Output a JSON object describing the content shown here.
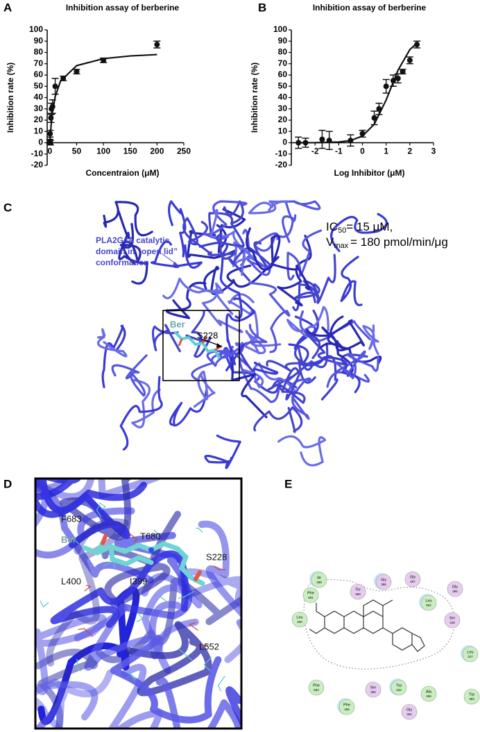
{
  "chart_data": [
    {
      "type": "scatter",
      "title": "Inhibition assay of berberine",
      "xlabel": "Concentraion (μM)",
      "ylabel": "Inhibition rate (%)",
      "x": [
        0,
        0.5,
        1,
        2,
        3,
        5,
        10,
        25,
        50,
        100,
        200
      ],
      "values": [
        1,
        8,
        0,
        22,
        30,
        32,
        50,
        57,
        63,
        73,
        87
      ],
      "errors": [
        2,
        3,
        2,
        4,
        5,
        6,
        7,
        2,
        2,
        2,
        3
      ],
      "fit": {
        "x": [
          0,
          2,
          5,
          10,
          20,
          50,
          100,
          150,
          200
        ],
        "values": [
          0,
          13.7,
          27.3,
          41,
          54.7,
          68.3,
          74.5,
          76.9,
          78.1
        ]
      },
      "color": "#111111",
      "xlim": [
        -5,
        250
      ],
      "xticks": [
        0,
        50,
        100,
        150,
        200,
        250
      ],
      "ylim": [
        -20,
        100
      ],
      "yticks": [
        -20,
        -10,
        0,
        10,
        20,
        30,
        40,
        50,
        60,
        70,
        80,
        90,
        100
      ]
    },
    {
      "type": "scatter",
      "title": "Inhibition assay of berberine",
      "xlabel": "Log Inhibitor (μM)",
      "ylabel": "Inhibition rate (%)",
      "x": [
        -2.7,
        -2.4,
        -1.7,
        -1.4,
        -0.5,
        0,
        0.5,
        0.7,
        1,
        1.3,
        1.5,
        1.7,
        2,
        2.3
      ],
      "values": [
        0,
        0,
        3,
        2,
        2,
        8,
        22,
        30,
        50,
        55,
        57,
        63,
        73,
        87
      ],
      "errors": [
        5,
        4,
        8,
        8,
        5,
        3,
        6,
        5,
        6,
        5,
        4,
        2,
        3,
        3
      ],
      "fit": {
        "x": [
          -2.7,
          -2,
          -1,
          -0.5,
          0,
          0.5,
          1,
          1.5,
          2,
          2.3
        ],
        "values": [
          0,
          0.06,
          0.62,
          1.94,
          5.87,
          16.4,
          37.8,
          64.2,
          82.5,
          88.3
        ]
      },
      "color": "#111111",
      "xlim": [
        -3,
        3
      ],
      "xticks": [
        -2,
        -1,
        0,
        1,
        2,
        3
      ],
      "ylim": [
        -20,
        100
      ],
      "yticks": [
        -20,
        -10,
        0,
        10,
        20,
        30,
        40,
        50,
        60,
        70,
        80,
        90,
        100
      ]
    }
  ],
  "panel_labels": [
    "A",
    "B",
    "C",
    "D",
    "E"
  ],
  "panel_c": {
    "annotation": [
      "PLA2G4A catalytic",
      "domain in “open lid”",
      "conformation"
    ],
    "ic": {
      "symbol": "IC",
      "sub": "50",
      "text": "= 15 μM,"
    },
    "vmax": {
      "symbol": "V",
      "sub": "max",
      "text": "= 180 pmol/min/μg"
    },
    "ligand": "Ber",
    "residue": "S228"
  },
  "panel_d": {
    "labels": [
      "F683",
      "T680",
      "Ber",
      "S228",
      "L400",
      "I399",
      "L552"
    ]
  },
  "panel_e": {
    "residues": [
      {
        "name": "Ile",
        "number": "399",
        "color": "#c9efc0"
      },
      {
        "name": "Phe",
        "number": "681",
        "color": "#c9efc0"
      },
      {
        "name": "Thr",
        "number": "680",
        "color": "#e6cdef"
      },
      {
        "name": "Gly",
        "number": "398",
        "color": "#e6cdef"
      },
      {
        "name": "Gly",
        "number": "397",
        "color": "#e6cdef"
      },
      {
        "name": "Gly",
        "number": "396",
        "color": "#e6cdef"
      },
      {
        "name": "Leu",
        "number": "552",
        "color": "#c9efc0"
      },
      {
        "name": "Leu",
        "number": "400",
        "color": "#c9efc0"
      },
      {
        "name": "Ser",
        "number": "228",
        "color": "#e6cdef"
      },
      {
        "name": "Leu",
        "number": "227",
        "color": "#c9efc0"
      },
      {
        "name": "Phe",
        "number": "683",
        "color": "#c9efc0"
      },
      {
        "name": "Ser",
        "number": "395",
        "color": "#e6cdef"
      },
      {
        "name": "Trp",
        "number": "232",
        "color": "#c9efc0"
      },
      {
        "name": "Ala",
        "number": "296",
        "color": "#c9efc0"
      },
      {
        "name": "Trp",
        "number": "393",
        "color": "#c9efc0"
      },
      {
        "name": "Phe",
        "number": "295",
        "color": "#c9efc0"
      },
      {
        "name": "Gly",
        "number": "394",
        "color": "#e6cdef"
      }
    ]
  }
}
